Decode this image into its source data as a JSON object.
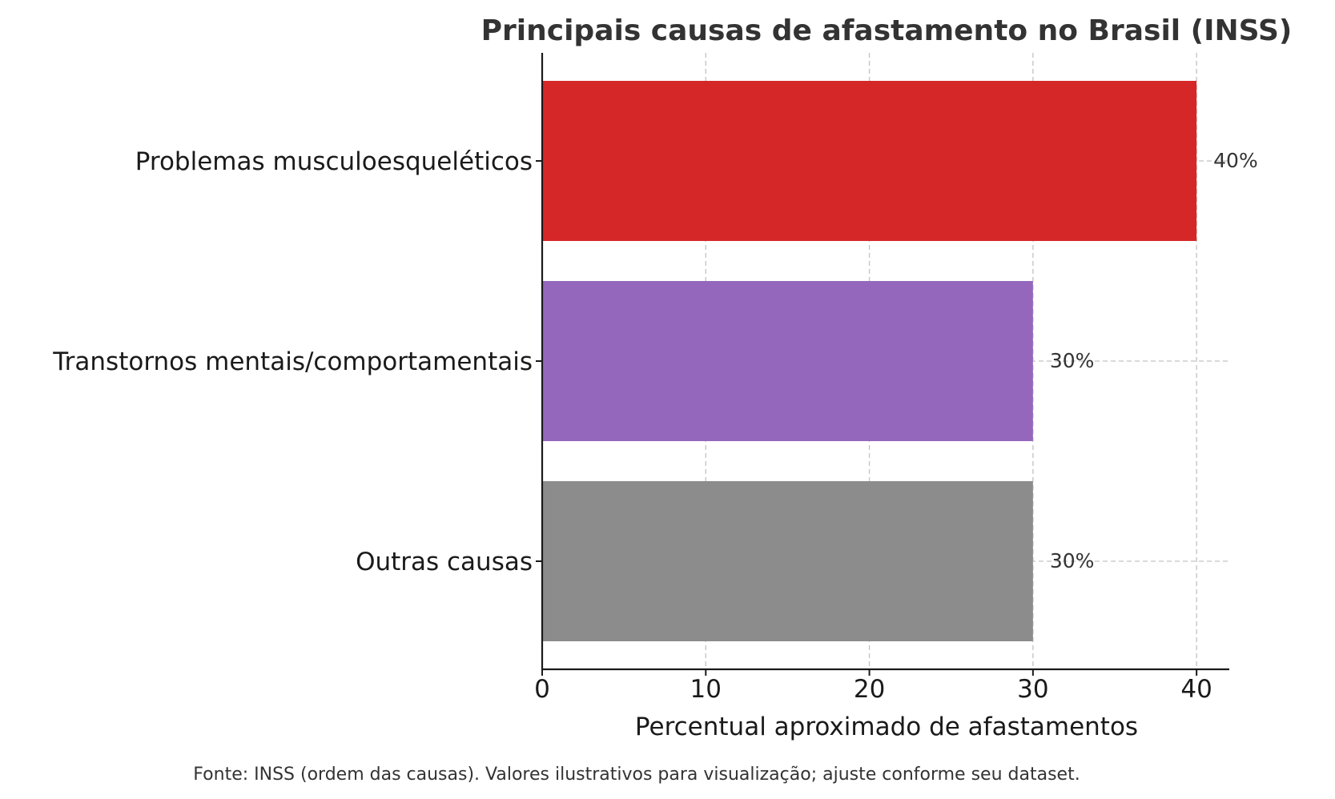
{
  "chart_data": {
    "type": "bar",
    "orientation": "horizontal",
    "title": "Principais causas de afastamento no Brasil (INSS)",
    "xlabel": "Percentual aproximado de afastamentos",
    "ylabel": "",
    "categories": [
      "Problemas musculoesqueléticos",
      "Transtornos mentais/comportamentais",
      "Outras causas"
    ],
    "values": [
      40,
      30,
      30
    ],
    "value_labels": [
      "40%",
      "30%",
      "30%"
    ],
    "colors": [
      "#d62728",
      "#9467bd",
      "#8c8c8c"
    ],
    "xlim": [
      0,
      42
    ],
    "xticks": [
      0,
      10,
      20,
      30,
      40
    ],
    "xtick_labels": [
      "0",
      "10",
      "20",
      "30",
      "40"
    ],
    "grid": true,
    "footnote": "Fonte: INSS (ordem das causas). Valores ilustrativos para visualização; ajuste conforme seu dataset."
  }
}
